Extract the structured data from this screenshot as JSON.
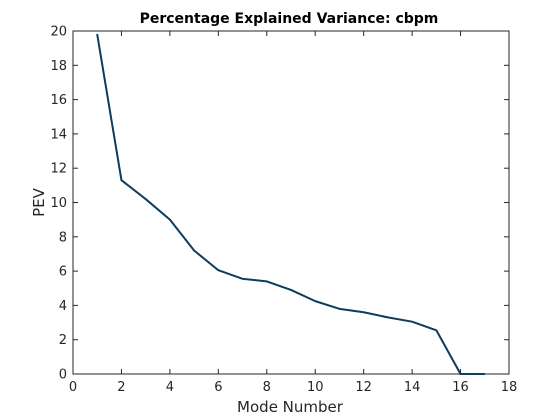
{
  "chart_data": {
    "type": "line",
    "title": "Percentage Explained Variance: cbpm",
    "xlabel": "Mode Number",
    "ylabel": "PEV",
    "xlim": [
      0,
      18
    ],
    "ylim": [
      0,
      20
    ],
    "xticks": [
      0,
      2,
      4,
      6,
      8,
      10,
      12,
      14,
      16,
      18
    ],
    "yticks": [
      0,
      2,
      4,
      6,
      8,
      10,
      12,
      14,
      16,
      18,
      20
    ],
    "grid": false,
    "line_color": "#0b3d5c",
    "series": [
      {
        "x": [
          1,
          2,
          3,
          4,
          5,
          6,
          7,
          8,
          9,
          10,
          11,
          12,
          13,
          14,
          15,
          16,
          17
        ],
        "values": [
          19.8,
          11.3,
          10.2,
          9.0,
          7.2,
          6.05,
          5.55,
          5.4,
          4.9,
          4.25,
          3.8,
          3.6,
          3.3,
          3.05,
          2.55,
          0.0,
          0.0
        ]
      }
    ]
  }
}
